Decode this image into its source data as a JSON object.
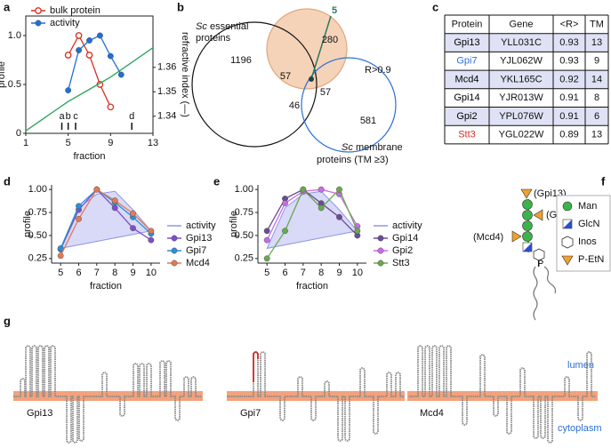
{
  "panel_labels": [
    "a",
    "b",
    "c",
    "d",
    "e",
    "f",
    "g"
  ],
  "chart_data": [
    {
      "type": "line",
      "xlabel": "fraction",
      "ylabel": "profile",
      "y2label": "refractive index (—)",
      "xlim": [
        1,
        13
      ],
      "xticks": [
        1,
        5,
        9,
        13
      ],
      "ylim": [
        0,
        1.2
      ],
      "yticks": [
        0,
        0.5,
        {
          "value": 1,
          "label": "1.0"
        }
      ],
      "y2lim": [
        1.333,
        1.381
      ],
      "y2ticks": [
        1.34,
        1.35,
        1.36
      ],
      "frame": true,
      "legend": "upper left",
      "series": [
        {
          "name": "bulk protein",
          "color": "#d7301f",
          "marker": "open-circle",
          "x": [
            5,
            6,
            7,
            8,
            9
          ],
          "values": [
            0.8,
            1.0,
            0.8,
            0.5,
            0.27
          ]
        },
        {
          "name": "activity",
          "color": "#1f6fd6",
          "marker": "filled-circle",
          "x": [
            5,
            6,
            7,
            8,
            9,
            10
          ],
          "values": [
            0.44,
            0.85,
            0.95,
            1.0,
            0.79,
            0.6
          ]
        },
        {
          "color": "#2ca25f",
          "axis": "y2",
          "x": [
            1,
            3,
            5,
            7,
            9,
            11,
            13
          ],
          "values": [
            1.334,
            1.34,
            1.346,
            1.351,
            1.356,
            1.362,
            1.368
          ]
        }
      ],
      "annotations": [
        {
          "label": "a",
          "x": 4.4
        },
        {
          "label": "b",
          "x": 5.0
        },
        {
          "label": "c",
          "x": 5.7
        },
        {
          "label": "d",
          "x": 11
        }
      ]
    },
    {
      "type": "line",
      "xlabel": "fraction",
      "ylabel": "profile",
      "xlim": [
        4.5,
        10.5
      ],
      "xticks": [
        5,
        6,
        7,
        8,
        9,
        10
      ],
      "ylim": [
        0.2,
        1.05
      ],
      "yticks": [
        0.25,
        {
          "value": 0.5,
          "label": "0.50"
        },
        0.75,
        {
          "value": 1,
          "label": "1.00"
        }
      ],
      "frame": false,
      "legend": "right",
      "x": [
        5,
        6,
        7,
        8,
        9,
        10
      ],
      "series": [
        {
          "name": "activity",
          "color": "#8f96e8",
          "style": "area",
          "values": [
            0.36,
            0.8,
            0.95,
            0.98,
            0.78,
            0.55
          ]
        },
        {
          "name": "Gpi13",
          "color": "#7b4fc9",
          "marker": "filled-circle",
          "values": [
            0.35,
            0.78,
            1.0,
            0.8,
            0.58,
            0.45
          ]
        },
        {
          "name": "Gpi7",
          "color": "#2b8fd8",
          "marker": "filled-circle",
          "values": [
            0.36,
            0.82,
            1.0,
            0.86,
            0.7,
            0.52
          ]
        },
        {
          "name": "Mcd4",
          "color": "#e07b54",
          "marker": "filled-circle",
          "values": [
            0.28,
            0.68,
            1.0,
            0.88,
            0.74,
            0.55
          ]
        }
      ]
    },
    {
      "type": "line",
      "xlabel": "fraction",
      "ylabel": "profile",
      "xlim": [
        4.5,
        10.5
      ],
      "xticks": [
        5,
        6,
        7,
        8,
        9,
        10
      ],
      "ylim": [
        0.2,
        1.05
      ],
      "yticks": [
        0.25,
        {
          "value": 0.5,
          "label": "0.50"
        },
        0.75,
        {
          "value": 1,
          "label": "1.00"
        }
      ],
      "frame": false,
      "legend": "right",
      "x": [
        5,
        6,
        7,
        8,
        9,
        10
      ],
      "series": [
        {
          "name": "activity",
          "color": "#8f96e8",
          "style": "area",
          "values": [
            0.36,
            0.8,
            0.95,
            0.98,
            0.78,
            0.55
          ]
        },
        {
          "name": "Gpi14",
          "color": "#6a4c93",
          "marker": "filled-circle",
          "values": [
            0.55,
            0.9,
            1.0,
            0.85,
            0.7,
            0.5
          ]
        },
        {
          "name": "Gpi2",
          "color": "#c86be6",
          "marker": "filled-circle",
          "values": [
            0.45,
            0.85,
            0.98,
            1.0,
            0.95,
            0.6
          ]
        },
        {
          "name": "Stt3",
          "color": "#6aa84f",
          "marker": "filled-circle",
          "values": [
            0.25,
            0.55,
            1.0,
            0.8,
            1.0,
            0.55
          ]
        }
      ]
    }
  ],
  "venn": {
    "sets": [
      {
        "name_italic": "Sc",
        "name_lines": [
          "essential",
          "proteins"
        ]
      },
      {
        "name_lines": [
          "R>0.9"
        ]
      },
      {
        "name_italic": "Sc",
        "name_lines": [
          "membrane",
          "proteins (TM ≥3)"
        ]
      }
    ],
    "counts": [
      1196,
      57,
      280,
      57,
      46,
      581,
      5
    ]
  },
  "table": {
    "header": [
      "Protein",
      "Gene",
      "<R>",
      "TM"
    ],
    "rows": [
      [
        "Gpi13",
        "YLL031C",
        0.93,
        13
      ],
      [
        "Gpi7",
        "YJL062W",
        0.93,
        9
      ],
      [
        "Mcd4",
        "YKL165C",
        0.92,
        14
      ],
      [
        "Gpi14",
        "YJR013W",
        0.91,
        8
      ],
      [
        "Gpi2",
        "YPL076W",
        0.91,
        6
      ],
      [
        "Stt3",
        "YGL022W",
        0.89,
        13
      ]
    ],
    "protein_colors": [
      "#000000",
      "#2b6fd6",
      "#000000",
      "#000000",
      "#000000",
      "#d0302a"
    ]
  },
  "glycan": {
    "attachments": [
      "(Gpi13)",
      "(Gpi7)",
      "(Mcd4)"
    ],
    "phosphate": "P",
    "legend": [
      "Man",
      "GlcN",
      "Inos",
      "P-EtN"
    ]
  },
  "topology": {
    "proteins": [
      "Gpi13",
      "Gpi7",
      "Mcd4"
    ],
    "lumen": "lumen",
    "cytoplasm": "cytoplasm"
  }
}
